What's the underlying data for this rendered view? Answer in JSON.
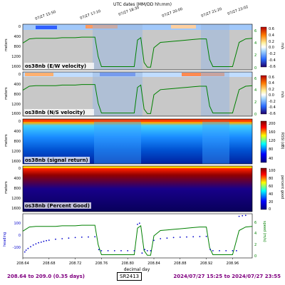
{
  "header": {
    "title": "UTC dates (MM/DD hh:mm)"
  },
  "top_axis": {
    "labels": [
      "07/27 15:50",
      "07/27 17:10",
      "07/27 18:30",
      "07/27 20:00",
      "07/27 21:20",
      "07/27 23:02"
    ]
  },
  "colors": {
    "ship_track": "#008000",
    "heading": "#0000cc",
    "footer_text": "#800080",
    "no_data": "#c8c8c8"
  },
  "panels": [
    {
      "id": "u",
      "title": "os38nb (E/W velocity)",
      "ylabel": "meters",
      "yticks": [
        "0",
        "400",
        "800",
        "1200",
        "1600"
      ],
      "cbar_label": "m/s",
      "cbar_ticks": [
        "0.6",
        "0.4",
        "0.2",
        "0.0",
        "-0.2",
        "-0.4",
        "-0.6"
      ],
      "right_ticks": [
        "6",
        "4",
        "2",
        "0"
      ]
    },
    {
      "id": "v",
      "title": "os38nb (N/S velocity)",
      "ylabel": "meters",
      "yticks": [
        "0",
        "400",
        "800",
        "1200",
        "1600"
      ],
      "cbar_label": "m/s",
      "cbar_ticks": [
        "0.6",
        "0.4",
        "0.2",
        "0.0",
        "-0.2",
        "-0.4",
        "-0.6"
      ],
      "right_ticks": [
        "6",
        "4",
        "2",
        "0"
      ]
    },
    {
      "id": "amp",
      "title": "os38nb (signal return)",
      "ylabel": "meters",
      "yticks": [
        "0",
        "400",
        "800",
        "1200",
        "1600"
      ],
      "cbar_label": "RSSI (dB)",
      "cbar_ticks": [
        "200",
        "160",
        "120",
        "80",
        "40"
      ]
    },
    {
      "id": "pg",
      "title": "os38nb (Percent Good)",
      "ylabel": "meters",
      "yticks": [
        "0",
        "400",
        "800",
        "1200",
        "1600"
      ],
      "cbar_label": "percent good",
      "cbar_ticks": [
        "100",
        "80",
        "60",
        "40",
        "20",
        "0"
      ]
    }
  ],
  "bottom_panel": {
    "xlabel": "decimal day",
    "ylabel_left": "heading",
    "ylabel_right": "speed (m/s)",
    "left_ticks": [
      "100",
      "0",
      "-100"
    ],
    "right_ticks": [
      "6",
      "4",
      "2",
      "0"
    ],
    "x_ticks": [
      "208.64",
      "208.68",
      "208.72",
      "208.76",
      "208.80",
      "208.84",
      "208.88",
      "208.92",
      "208.96"
    ]
  },
  "chart_data": {
    "type": "line",
    "title": "UTC dates (MM/DD hh:mm)",
    "xlabel": "decimal day",
    "xlim": [
      208.64,
      208.99
    ],
    "series": [
      {
        "x": [
          208.64,
          208.65,
          208.66,
          208.67,
          208.68,
          208.69,
          208.7,
          208.71,
          208.72,
          208.73,
          208.74,
          208.75,
          208.755,
          208.76,
          208.77,
          208.78,
          208.79,
          208.8,
          208.81,
          208.815,
          208.82,
          208.825,
          208.83,
          208.835,
          208.84,
          208.85,
          208.86,
          208.87,
          208.88,
          208.89,
          208.9,
          208.91,
          208.92,
          208.925,
          208.93,
          208.94,
          208.95,
          208.96,
          208.97,
          208.98,
          208.99
        ],
        "values": [
          4.3,
          5.0,
          5.1,
          5.1,
          5.1,
          5.1,
          5.2,
          5.2,
          5.2,
          5.3,
          5.3,
          5.3,
          2.0,
          0.3,
          0.3,
          0.3,
          0.3,
          0.3,
          0.3,
          4.8,
          5.2,
          1.0,
          0.2,
          0.2,
          3.5,
          4.4,
          4.5,
          4.6,
          4.7,
          4.8,
          4.9,
          5.0,
          5.0,
          1.5,
          0.3,
          0.3,
          0.3,
          0.3,
          4.4,
          5.0,
          5.1
        ]
      },
      {
        "x": [
          208.643,
          208.645,
          208.648,
          208.652,
          208.656,
          208.66,
          208.664,
          208.668,
          208.672,
          208.676,
          208.68,
          208.69,
          208.7,
          208.71,
          208.72,
          208.73,
          208.74,
          208.75,
          208.756,
          208.76,
          208.77,
          208.78,
          208.79,
          208.8,
          208.81,
          208.815,
          208.818,
          208.822,
          208.826,
          208.83,
          208.835,
          208.84,
          208.85,
          208.86,
          208.87,
          208.88,
          208.89,
          208.9,
          208.91,
          208.92,
          208.926,
          208.93,
          208.94,
          208.95,
          208.96,
          208.966,
          208.97,
          208.975,
          208.98
        ],
        "values": [
          -140,
          -125,
          -110,
          -95,
          -80,
          -70,
          -60,
          -55,
          -48,
          -42,
          -38,
          -30,
          -25,
          -20,
          -15,
          -12,
          -10,
          -8,
          -120,
          -130,
          -130,
          -130,
          -130,
          -130,
          -130,
          100,
          110,
          -150,
          -120,
          -130,
          -130,
          -40,
          -25,
          -20,
          -15,
          -12,
          -10,
          -8,
          -6,
          -5,
          -120,
          -130,
          -130,
          -130,
          -130,
          -130,
          170,
          175,
          178
        ]
      }
    ]
  },
  "footer": {
    "left": "208.64 to 209.0 (0.35 days)",
    "middle": "SR2413",
    "right": "2024/07/27 15:25 to 2024/07/27 23:55"
  }
}
